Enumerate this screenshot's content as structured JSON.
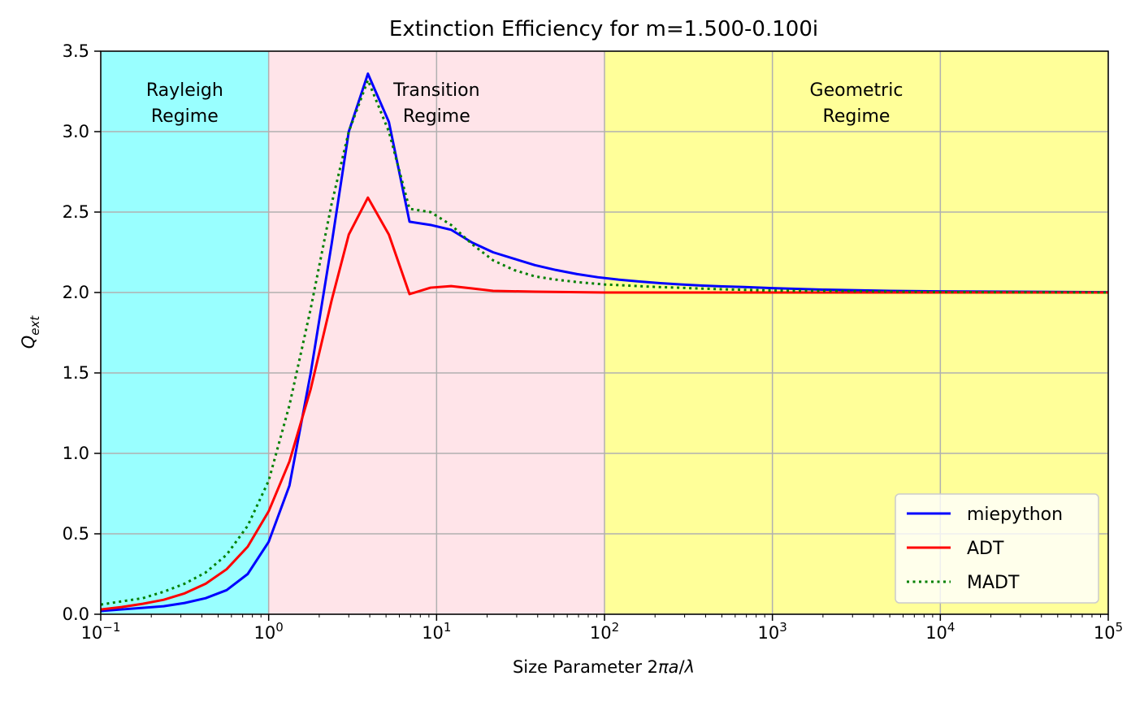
{
  "chart_data": {
    "type": "line",
    "title": "Extinction Efficiency for m=1.500-0.100i",
    "xlabel": "Size Parameter 2πa/λ",
    "ylabel": "Q_ext",
    "xscale": "log",
    "xlim": [
      0.1,
      100000
    ],
    "ylim": [
      0,
      3.5
    ],
    "grid": true,
    "legend_position": "bottom-right",
    "x_tick_values": [
      0.1,
      1,
      10,
      100,
      1000,
      10000,
      100000
    ],
    "x_tick_bases": [
      "10",
      "10",
      "10",
      "10",
      "10",
      "10",
      "10"
    ],
    "x_tick_exponents": [
      "−1",
      "0",
      "1",
      "2",
      "3",
      "4",
      "5"
    ],
    "y_ticks": [
      "0.0",
      "0.5",
      "1.0",
      "1.5",
      "2.0",
      "2.5",
      "3.0",
      "3.5"
    ],
    "regions": [
      {
        "label_line1": "Rayleigh",
        "label_line2": "Regime",
        "x_range": [
          0.1,
          1
        ],
        "color": "#99ffff"
      },
      {
        "label_line1": "Transition",
        "label_line2": "Regime",
        "x_range": [
          1,
          100
        ],
        "color": "#ffe4e9"
      },
      {
        "label_line1": "Geometric",
        "label_line2": "Regime",
        "x_range": [
          100,
          100000
        ],
        "color": "#ffff99"
      }
    ],
    "series": [
      {
        "name": "miepython",
        "color": "#0000ff",
        "style": "solid",
        "x": [
          0.1,
          0.133,
          0.178,
          0.237,
          0.316,
          0.422,
          0.562,
          0.75,
          1.0,
          1.33,
          1.78,
          2.37,
          3.0,
          3.9,
          5.2,
          6.9,
          9.2,
          12.2,
          16.3,
          21.7,
          28.9,
          38.5,
          51.3,
          68.3,
          91,
          121,
          162,
          215,
          287,
          383,
          511,
          681,
          1000,
          2000,
          5000,
          10000,
          100000
        ],
        "y": [
          0.02,
          0.03,
          0.04,
          0.05,
          0.07,
          0.1,
          0.15,
          0.25,
          0.45,
          0.8,
          1.5,
          2.3,
          3.0,
          3.36,
          3.06,
          2.44,
          2.42,
          2.39,
          2.31,
          2.25,
          2.21,
          2.17,
          2.14,
          2.115,
          2.095,
          2.08,
          2.068,
          2.058,
          2.05,
          2.043,
          2.038,
          2.034,
          2.027,
          2.018,
          2.01,
          2.007,
          2.002
        ]
      },
      {
        "name": "ADT",
        "color": "#ff0000",
        "style": "solid",
        "x": [
          0.1,
          0.133,
          0.178,
          0.237,
          0.316,
          0.422,
          0.562,
          0.75,
          1.0,
          1.33,
          1.78,
          2.37,
          3.0,
          3.9,
          5.2,
          6.9,
          9.2,
          12.2,
          16.3,
          21.7,
          38.5,
          100,
          1000,
          100000
        ],
        "y": [
          0.03,
          0.045,
          0.065,
          0.09,
          0.13,
          0.19,
          0.28,
          0.42,
          0.64,
          0.95,
          1.4,
          1.95,
          2.36,
          2.59,
          2.36,
          1.99,
          2.03,
          2.04,
          2.025,
          2.01,
          2.005,
          2.0,
          2.0,
          2.0
        ]
      },
      {
        "name": "MADT",
        "color": "#008000",
        "style": "dotted",
        "x": [
          0.1,
          0.133,
          0.178,
          0.237,
          0.316,
          0.422,
          0.562,
          0.75,
          1.0,
          1.33,
          1.78,
          2.37,
          3.0,
          3.9,
          5.2,
          6.9,
          9.2,
          12.2,
          16.3,
          21.7,
          28.9,
          38.5,
          51.3,
          68.3,
          100,
          200,
          500,
          1000,
          10000,
          100000
        ],
        "y": [
          0.06,
          0.08,
          0.1,
          0.14,
          0.19,
          0.26,
          0.37,
          0.55,
          0.83,
          1.3,
          1.9,
          2.55,
          3.0,
          3.32,
          3.0,
          2.52,
          2.5,
          2.42,
          2.3,
          2.2,
          2.14,
          2.1,
          2.08,
          2.065,
          2.05,
          2.035,
          2.02,
          2.012,
          2.003,
          2.0
        ]
      }
    ]
  }
}
